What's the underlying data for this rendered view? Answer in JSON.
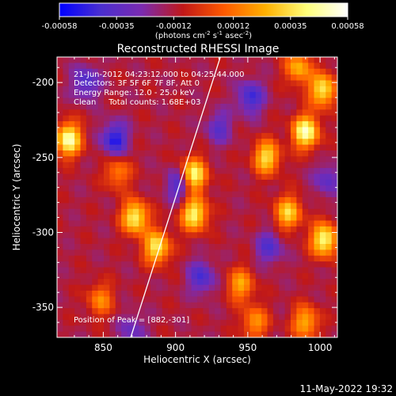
{
  "chart_data": {
    "type": "heatmap",
    "title": "Reconstructed RHESSI Image",
    "xlabel": "Heliocentric X (arcsec)",
    "ylabel": "Heliocentric Y (arcsec)",
    "xlim": [
      818,
      1012
    ],
    "ylim": [
      -370,
      -183
    ],
    "x_ticks": [
      850,
      900,
      950,
      1000
    ],
    "y_ticks": [
      -200,
      -250,
      -300,
      -350
    ],
    "colorbar": {
      "ticks": [
        "-0.00058",
        "-0.00035",
        "-0.00012",
        "0.00012",
        "0.00035",
        "0.00058"
      ],
      "unit_label": "(photons cm",
      "unit_parts": [
        "(photons cm",
        "-2",
        " s",
        "-1",
        " asec",
        "-2",
        ")"
      ],
      "range": [
        -0.00058,
        0.00058
      ],
      "colormap": [
        "#0000ff",
        "#4a2fd0",
        "#7b2bb0",
        "#c01818",
        "#ff5a00",
        "#ffb000",
        "#ffff7a",
        "#ffffff"
      ]
    },
    "annotations": [
      "21-Jun-2012 04:23:12.000 to 04:25:44.000",
      "Detectors: 3F 5F 6F 7F 8F, Att 0",
      "Energy Range: 12.0 - 25.0 keV",
      "Clean     Total counts: 1.68E+03"
    ],
    "peak_label": "Position of Peak = [882,-301]",
    "limb_line": {
      "x": [
        869,
        931
      ],
      "y": [
        -370,
        -183
      ]
    },
    "hotspots": [
      {
        "x": 826,
        "y": -238,
        "intensity": 0.95
      },
      {
        "x": 872,
        "y": -290,
        "intensity": 0.85
      },
      {
        "x": 887,
        "y": -310,
        "intensity": 0.8
      },
      {
        "x": 912,
        "y": -262,
        "intensity": 0.95
      },
      {
        "x": 913,
        "y": -288,
        "intensity": 0.85
      },
      {
        "x": 963,
        "y": -250,
        "intensity": 0.75
      },
      {
        "x": 978,
        "y": -287,
        "intensity": 0.7
      },
      {
        "x": 990,
        "y": -233,
        "intensity": 0.95
      },
      {
        "x": 1002,
        "y": -205,
        "intensity": 0.8
      },
      {
        "x": 1003,
        "y": -305,
        "intensity": 0.9
      },
      {
        "x": 990,
        "y": -360,
        "intensity": 0.6
      },
      {
        "x": 985,
        "y": -190,
        "intensity": 0.6
      },
      {
        "x": 848,
        "y": -345,
        "intensity": 0.45
      },
      {
        "x": 945,
        "y": -335,
        "intensity": 0.55
      },
      {
        "x": 955,
        "y": -360,
        "intensity": 0.5
      },
      {
        "x": 860,
        "y": -260,
        "intensity": 0.45
      }
    ],
    "coldspots": [
      {
        "x": 858,
        "y": -238,
        "intensity": -0.6
      },
      {
        "x": 838,
        "y": -200,
        "intensity": -0.45
      },
      {
        "x": 903,
        "y": -268,
        "intensity": -0.55
      },
      {
        "x": 952,
        "y": -210,
        "intensity": -0.5
      },
      {
        "x": 965,
        "y": -310,
        "intensity": -0.4
      },
      {
        "x": 918,
        "y": -330,
        "intensity": -0.45
      },
      {
        "x": 930,
        "y": -230,
        "intensity": -0.35
      },
      {
        "x": 870,
        "y": -365,
        "intensity": -0.3
      },
      {
        "x": 1005,
        "y": -265,
        "intensity": -0.35
      }
    ]
  },
  "footer": {
    "timestamp": "11-May-2022 19:32"
  }
}
